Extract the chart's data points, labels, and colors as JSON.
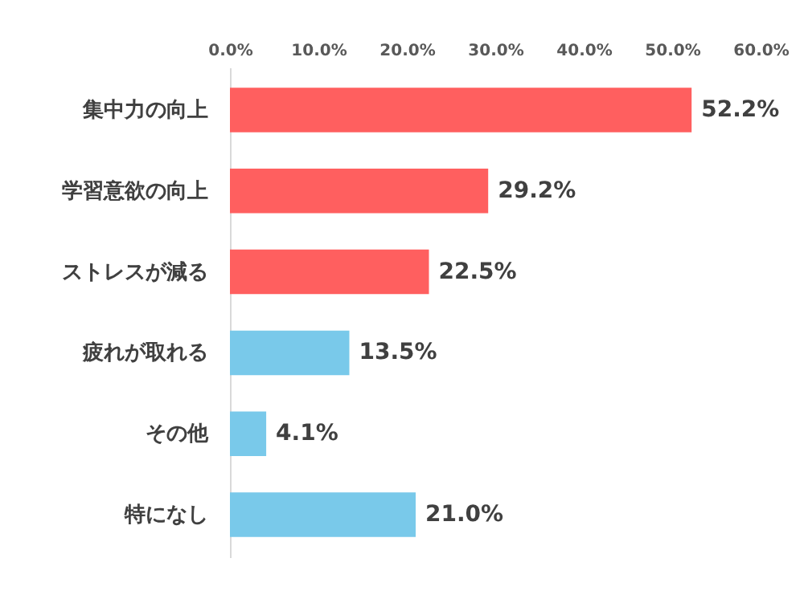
{
  "chart_data": {
    "type": "bar",
    "orientation": "horizontal",
    "categories": [
      "集中力の向上",
      "学習意欲の向上",
      "ストレスが減る",
      "疲れが取れる",
      "その他",
      "特になし"
    ],
    "values": [
      52.2,
      29.2,
      22.5,
      13.5,
      4.1,
      21.0
    ],
    "colors": [
      "#ff5f5f",
      "#ff5f5f",
      "#ff5f5f",
      "#79c9ea",
      "#79c9ea",
      "#79c9ea"
    ],
    "value_labels": [
      "52.2%",
      "29.2%",
      "22.5%",
      "13.5%",
      "4.1%",
      "21.0%"
    ],
    "xlim": [
      0,
      60
    ],
    "xticks": [
      {
        "value": 0,
        "label": "0.0%"
      },
      {
        "value": 10,
        "label": "10.0%"
      },
      {
        "value": 20,
        "label": "20.0%"
      },
      {
        "value": 30,
        "label": "30.0%"
      },
      {
        "value": 40,
        "label": "40.0%"
      },
      {
        "value": 50,
        "label": "50.0%"
      },
      {
        "value": 60,
        "label": "60.0%"
      }
    ]
  }
}
